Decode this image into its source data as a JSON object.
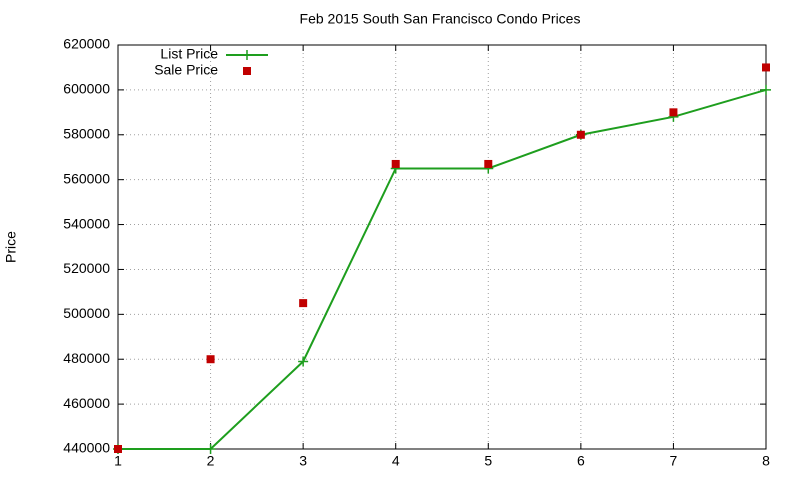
{
  "chart_data": {
    "type": "line",
    "title": "Feb 2015 South San Francisco Condo Prices",
    "y_label": "Price",
    "x": [
      1,
      2,
      3,
      4,
      5,
      6,
      7,
      8
    ],
    "series": [
      {
        "name": "List Price",
        "color": "#1e9e1e",
        "mode": "linespoints",
        "values": [
          440000,
          440000,
          479000,
          565000,
          565000,
          580000,
          588000,
          600000
        ]
      },
      {
        "name": "Sale Price",
        "color": "#c00000",
        "mode": "points",
        "values": [
          440000,
          480000,
          505000,
          567000,
          567000,
          580000,
          590000,
          610000
        ]
      }
    ],
    "xlim": [
      1,
      8
    ],
    "xticks": [
      1,
      2,
      3,
      4,
      5,
      6,
      7,
      8
    ],
    "ylim": [
      440000,
      620000
    ],
    "yticks": [
      440000,
      460000,
      480000,
      500000,
      520000,
      540000,
      560000,
      580000,
      600000,
      620000
    ],
    "grid": true,
    "legend": "top-left"
  }
}
